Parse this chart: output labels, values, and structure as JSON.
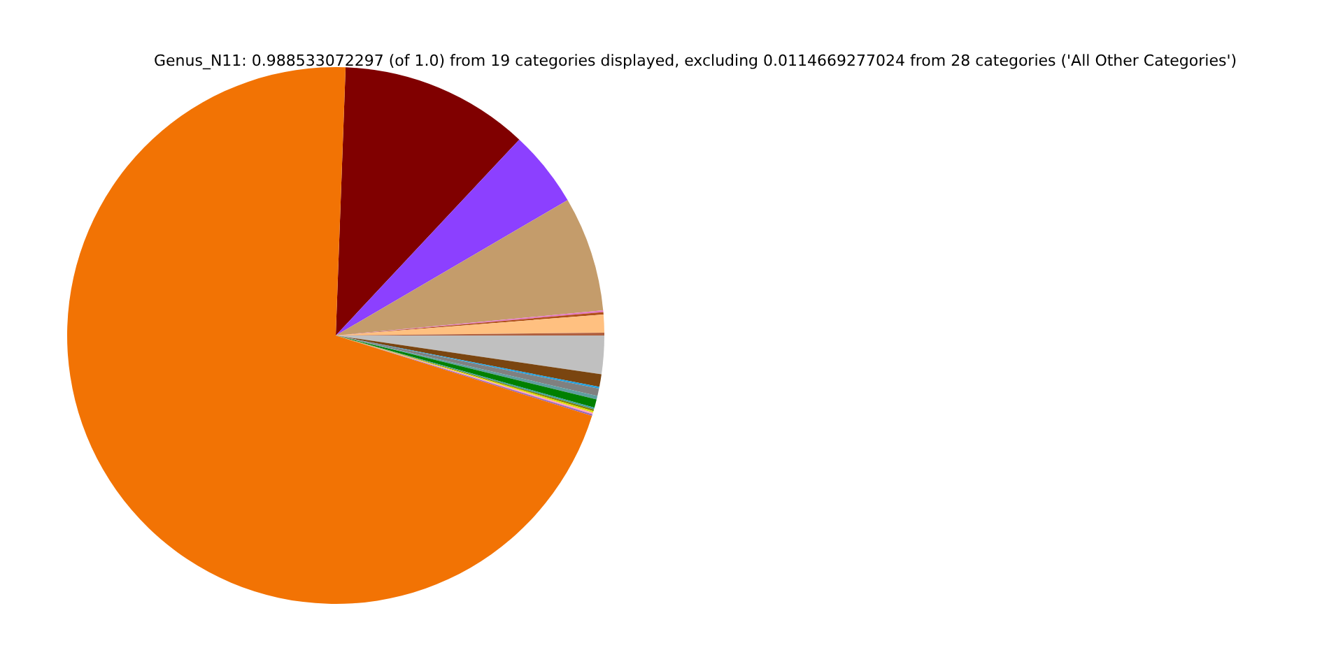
{
  "chart_data": {
    "type": "pie",
    "title": "Genus_N11: 0.988533072297 (of 1.0) from 19 categories displayed, excluding 0.0114669277024 from 28 categories ('All Other Categories')",
    "categories": [
      null,
      null,
      null,
      null,
      null,
      null,
      null,
      null,
      null,
      null,
      null,
      null,
      null,
      null,
      null,
      null,
      null,
      null,
      null
    ],
    "values": [
      11.39,
      4.61,
      6.92,
      0.11,
      0.14,
      1.08,
      0.17,
      2.31,
      0.75,
      0.11,
      0.44,
      0.22,
      0.5,
      0.11,
      0.1,
      0.1,
      0.1,
      0.1,
      70.74
    ],
    "colors": [
      "#800000",
      "#8c40ff",
      "#c49c6b",
      "#e377c2",
      "#b0501a",
      "#ffc080",
      "#b06040",
      "#c0c0c0",
      "#7a4510",
      "#1fa0e0",
      "#808080",
      "#5f9ea0",
      "#008000",
      "#40a0a0",
      "#808000",
      "#e0e000",
      "#ff9fbf",
      "#9467bd",
      "#f27304"
    ]
  }
}
